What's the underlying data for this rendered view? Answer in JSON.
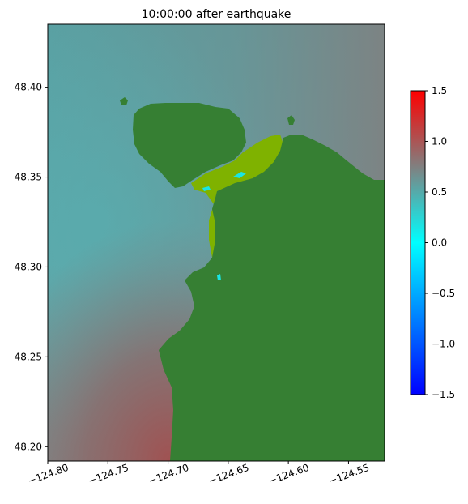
{
  "title": "10:00:00 after earthquake",
  "colors": {
    "land": "#367f33",
    "inundated": "#7fb200",
    "ocean_cyan": "#56a9ab",
    "ocean_gray": "#808080",
    "ocean_red": "#9a5656",
    "bright_cyan": "#19e5e5"
  },
  "map": {
    "x_range": [
      -124.8,
      -124.52
    ],
    "y_range": [
      48.192,
      48.435
    ],
    "x_ticks": [
      {
        "value": -124.8,
        "label": "−124.80"
      },
      {
        "value": -124.75,
        "label": "−124.75"
      },
      {
        "value": -124.7,
        "label": "−124.70"
      },
      {
        "value": -124.65,
        "label": "−124.65"
      },
      {
        "value": -124.6,
        "label": "−124.60"
      },
      {
        "value": -124.55,
        "label": "−124.55"
      }
    ],
    "y_ticks": [
      {
        "value": 48.2,
        "label": "48.20"
      },
      {
        "value": 48.25,
        "label": "48.25"
      },
      {
        "value": 48.3,
        "label": "48.30"
      },
      {
        "value": 48.35,
        "label": "48.35"
      },
      {
        "value": 48.4,
        "label": "48.40"
      }
    ]
  },
  "colorbar": {
    "range": [
      -1.5,
      1.5
    ],
    "stops": [
      {
        "value": -1.5,
        "color": "#0000ff"
      },
      {
        "value": 0.0,
        "color": "#00ffff"
      },
      {
        "value": 0.75,
        "color": "#808080"
      },
      {
        "value": 1.5,
        "color": "#ff0000"
      }
    ],
    "ticks": [
      {
        "value": -1.5,
        "label": "−1.5"
      },
      {
        "value": -1.0,
        "label": "−1.0"
      },
      {
        "value": -0.5,
        "label": "−0.5"
      },
      {
        "value": 0.0,
        "label": "0.0"
      },
      {
        "value": 0.5,
        "label": "0.5"
      },
      {
        "value": 1.0,
        "label": "1.0"
      },
      {
        "value": 1.5,
        "label": "1.5"
      }
    ]
  }
}
